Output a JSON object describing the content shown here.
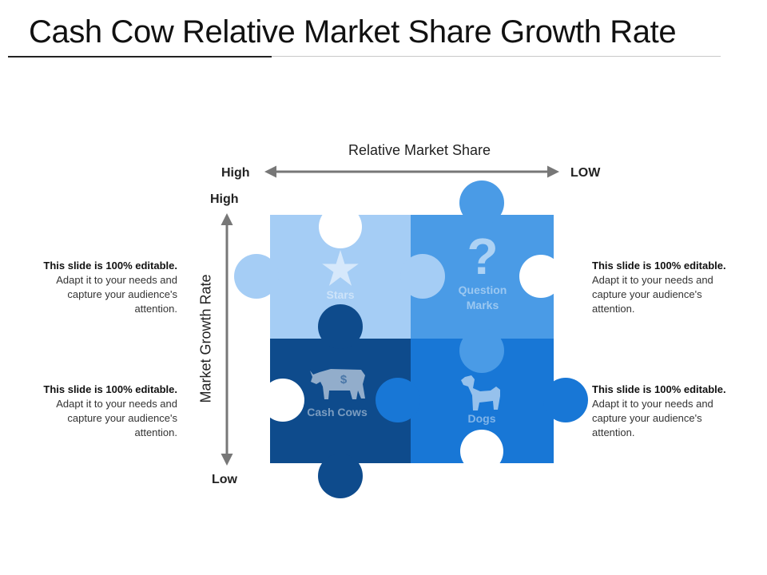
{
  "title": "Cash Cow Relative Market Share Growth Rate",
  "axes": {
    "horizontal_title": "Relative Market Share",
    "horizontal_left": "High",
    "horizontal_right": "LOW",
    "vertical_title": "Market Growth Rate",
    "vertical_top": "High",
    "vertical_bottom": "Low"
  },
  "quadrants": {
    "stars": {
      "label": "Stars",
      "icon": "star-icon",
      "color": "#a5cdf5"
    },
    "question_marks": {
      "label": "Question Marks",
      "icon": "question-mark-icon",
      "color": "#4a9be6"
    },
    "cash_cows": {
      "label": "Cash Cows",
      "icon": "cow-icon",
      "color": "#0e4b8c"
    },
    "dogs": {
      "label": "Dogs",
      "icon": "dog-icon",
      "color": "#1877d6"
    }
  },
  "notes": [
    {
      "bold": "This slide is 100% editable.",
      "text": " Adapt it to your needs and capture your audience's attention."
    },
    {
      "bold": "This slide is 100% editable.",
      "text": " Adapt it to your needs and capture your audience's attention."
    },
    {
      "bold": "This slide is 100% editable.",
      "text": " Adapt it to your needs and capture your audience's attention."
    },
    {
      "bold": "This slide is 100% editable.",
      "text": " Adapt it to your needs and capture your audience's attention."
    }
  ]
}
